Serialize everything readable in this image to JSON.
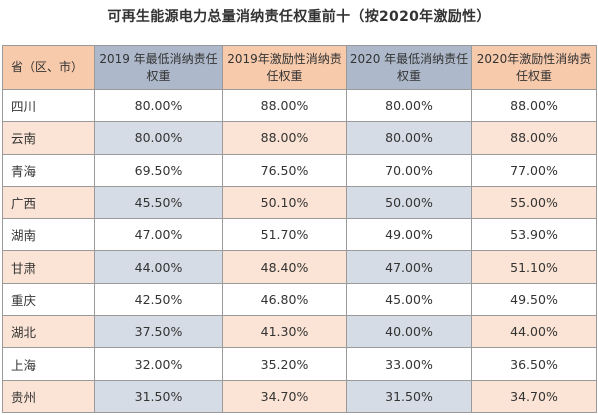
{
  "title": "可再生能源电力总量消纳责任权重前十（按2020年激励性）",
  "headers": [
    "省（区、市）",
    "2019 年最低消纳责任权重",
    "2019年激励性消纳责任权重",
    "2020 年最低消纳责任权重",
    "2020年激励性消纳责任权重"
  ],
  "rows": [
    {
      "province": "四川",
      "v": [
        "80.00%",
        "88.00%",
        "80.00%",
        "88.00%"
      ]
    },
    {
      "province": "云南",
      "v": [
        "80.00%",
        "88.00%",
        "80.00%",
        "88.00%"
      ]
    },
    {
      "province": "青海",
      "v": [
        "69.50%",
        "76.50%",
        "70.00%",
        "77.00%"
      ]
    },
    {
      "province": "广西",
      "v": [
        "45.50%",
        "50.10%",
        "50.00%",
        "55.00%"
      ]
    },
    {
      "province": "湖南",
      "v": [
        "47.00%",
        "51.70%",
        "49.00%",
        "53.90%"
      ]
    },
    {
      "province": "甘肃",
      "v": [
        "44.00%",
        "48.40%",
        "47.00%",
        "51.10%"
      ]
    },
    {
      "province": "重庆",
      "v": [
        "42.50%",
        "46.80%",
        "45.00%",
        "49.50%"
      ]
    },
    {
      "province": "湖北",
      "v": [
        "37.50%",
        "41.30%",
        "40.00%",
        "44.00%"
      ]
    },
    {
      "province": "上海",
      "v": [
        "32.00%",
        "35.20%",
        "33.00%",
        "36.50%"
      ]
    },
    {
      "province": "贵州",
      "v": [
        "31.50%",
        "34.70%",
        "31.50%",
        "34.70%"
      ]
    }
  ],
  "colors": {
    "header_pink": "#f7caac",
    "header_blue": "#adb9ca",
    "row_pink": "#fbe4d5",
    "row_blue": "#d6dce5",
    "border": "#9a9a9a"
  }
}
